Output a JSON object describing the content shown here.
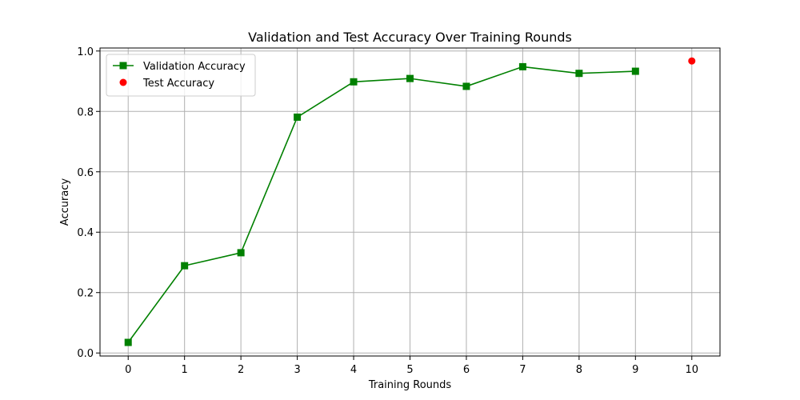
{
  "chart_data": {
    "type": "line",
    "title": "Validation and Test Accuracy Over Training Rounds",
    "xlabel": "Training Rounds",
    "ylabel": "Accuracy",
    "xlim": [
      -0.5,
      10.5
    ],
    "ylim": [
      -0.01,
      1.01
    ],
    "x_ticks": [
      0,
      1,
      2,
      3,
      4,
      5,
      6,
      7,
      8,
      9,
      10
    ],
    "y_ticks": [
      0.0,
      0.2,
      0.4,
      0.6,
      0.8,
      1.0
    ],
    "y_tick_labels": [
      "0.0",
      "0.2",
      "0.4",
      "0.6",
      "0.8",
      "1.0"
    ],
    "grid": true,
    "legend_position": "top-left",
    "series": [
      {
        "name": "Validation Accuracy",
        "kind": "line",
        "marker": "square",
        "color": "#008000",
        "x": [
          0,
          1,
          2,
          3,
          4,
          5,
          6,
          7,
          8,
          9
        ],
        "y": [
          0.035,
          0.289,
          0.332,
          0.781,
          0.898,
          0.909,
          0.883,
          0.948,
          0.926,
          0.933
        ]
      },
      {
        "name": "Test Accuracy",
        "kind": "scatter",
        "marker": "circle",
        "color": "#ff0000",
        "x": [
          10
        ],
        "y": [
          0.967
        ]
      }
    ]
  }
}
